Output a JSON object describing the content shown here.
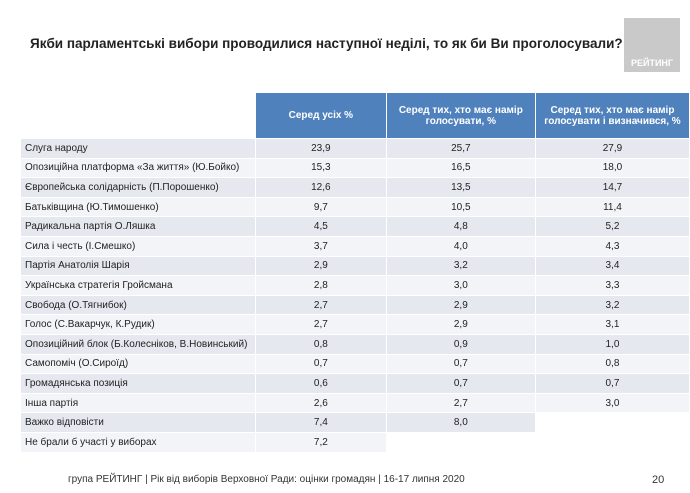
{
  "header": {
    "title": "Якби парламентські вибори проводилися наступної неділі, то як би Ви проголосували?",
    "logo": "РЕЙТИНГ"
  },
  "table": {
    "columns": [
      "Серед усіх %",
      "Серед тих, хто має намір голосувати, %",
      "Серед тих, хто має намір голосувати і визначився, %"
    ],
    "rows": [
      [
        "Слуга народу",
        "23,9",
        "25,7",
        "27,9"
      ],
      [
        "Опозиційна платформа «За життя» (Ю.Бойко)",
        "15,3",
        "16,5",
        "18,0"
      ],
      [
        "Європейська солідарність (П.Порошенко)",
        "12,6",
        "13,5",
        "14,7"
      ],
      [
        "Батьківщина (Ю.Тимошенко)",
        "9,7",
        "10,5",
        "11,4"
      ],
      [
        "Радикальна партія О.Ляшка",
        "4,5",
        "4,8",
        "5,2"
      ],
      [
        "Сила і честь (І.Смешко)",
        "3,7",
        "4,0",
        "4,3"
      ],
      [
        "Партія Анатолія Шарія",
        "2,9",
        "3,2",
        "3,4"
      ],
      [
        "Українська стратегія Гройсмана",
        "2,8",
        "3,0",
        "3,3"
      ],
      [
        "Свобода (О.Тягнибок)",
        "2,7",
        "2,9",
        "3,2"
      ],
      [
        "Голос (С.Вакарчук, К.Рудик)",
        "2,7",
        "2,9",
        "3,1"
      ],
      [
        "Опозиційний блок (Б.Колесніков, В.Новинський)",
        "0,8",
        "0,9",
        "1,0"
      ],
      [
        "Самопоміч (О.Сироїд)",
        "0,7",
        "0,7",
        "0,8"
      ],
      [
        "Громадянська позиція",
        "0,6",
        "0,7",
        "0,7"
      ],
      [
        "Інша партія",
        "2,6",
        "2,7",
        "3,0"
      ],
      [
        "Важко відповісти",
        "7,4",
        "8,0"
      ],
      [
        "Не брали б участі у виборах",
        "7,2"
      ]
    ]
  },
  "footer": {
    "source": "група РЕЙТИНГ | Рік від виборів Верховної Ради: оцінки громадян | 16-17 липня 2020",
    "page": "20"
  }
}
